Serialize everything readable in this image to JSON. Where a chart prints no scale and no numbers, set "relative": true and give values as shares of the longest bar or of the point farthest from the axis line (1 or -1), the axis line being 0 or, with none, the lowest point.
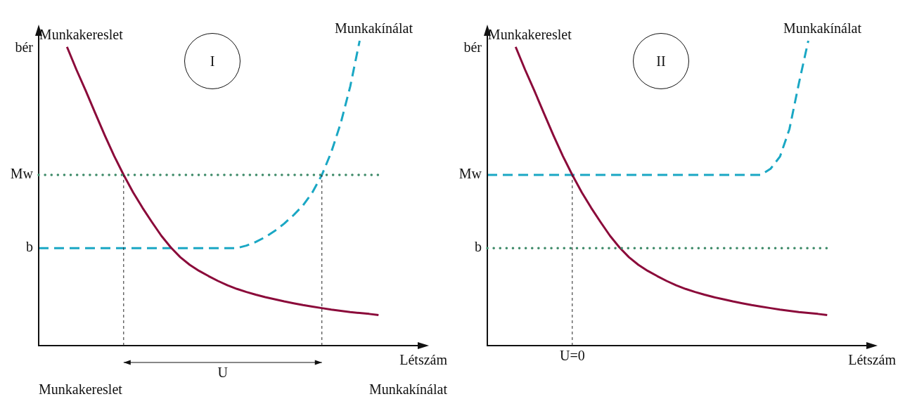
{
  "chart_data": [
    {
      "type": "line",
      "relative": true,
      "title": "I",
      "xlabel": "Létszám",
      "ylabel": "bér",
      "legend": false,
      "categories": [
        null,
        null,
        null,
        null,
        null,
        null,
        null,
        null,
        null,
        null,
        null,
        null,
        null,
        null,
        null,
        null,
        null,
        null,
        null,
        null,
        null,
        null,
        null,
        null,
        null,
        null,
        null,
        null,
        null,
        null,
        null,
        null,
        null,
        null,
        null,
        null,
        null,
        null,
        null,
        null,
        null
      ],
      "series": [
        {
          "name": "Munkakereslet",
          "color": "#8b0a3a",
          "line_style": "solid",
          "values": [
            null,
            null,
            null,
            0.98,
            0.905,
            0.835,
            0.762,
            0.69,
            0.622,
            0.56,
            0.503,
            0.452,
            0.405,
            0.36,
            0.322,
            0.29,
            0.265,
            0.245,
            0.228,
            0.212,
            0.198,
            0.186,
            0.176,
            0.167,
            0.159,
            0.152,
            0.145,
            0.139,
            0.133,
            0.128,
            0.123,
            0.118,
            0.114,
            0.11,
            0.107,
            0.104,
            0.1,
            null,
            null,
            null,
            null
          ]
        },
        {
          "name": "Munkakínálat",
          "color": "#1aa7c4",
          "line_style": "dashed",
          "values": [
            0.32,
            0.32,
            0.32,
            0.32,
            0.32,
            0.32,
            0.32,
            0.32,
            0.32,
            0.32,
            0.32,
            0.32,
            0.32,
            0.32,
            0.32,
            0.32,
            0.32,
            0.32,
            0.32,
            0.32,
            0.32,
            0.32,
            0.328,
            0.34,
            0.356,
            0.376,
            0.4,
            0.428,
            0.46,
            0.503,
            0.56,
            0.635,
            0.73,
            0.85,
            1.0,
            null,
            null,
            null,
            null,
            null,
            null
          ]
        }
      ],
      "ref_lines": [
        {
          "axis": "y",
          "value": 0.56,
          "color": "#3d8a68",
          "line_style": "dotted"
        }
      ],
      "annotations": [
        "Mw",
        "b",
        "U",
        "Munkakereslet",
        "Munkakínálat"
      ]
    },
    {
      "type": "line",
      "relative": true,
      "title": "II",
      "xlabel": "Létszám",
      "ylabel": "bér",
      "legend": false,
      "categories": [
        null,
        null,
        null,
        null,
        null,
        null,
        null,
        null,
        null,
        null,
        null,
        null,
        null,
        null,
        null,
        null,
        null,
        null,
        null,
        null,
        null,
        null,
        null,
        null,
        null,
        null,
        null,
        null,
        null,
        null,
        null,
        null,
        null,
        null,
        null,
        null,
        null,
        null,
        null,
        null,
        null
      ],
      "series": [
        {
          "name": "Munkakereslet",
          "color": "#8b0a3a",
          "line_style": "solid",
          "values": [
            null,
            null,
            null,
            0.98,
            0.905,
            0.835,
            0.762,
            0.69,
            0.622,
            0.56,
            0.503,
            0.452,
            0.405,
            0.36,
            0.322,
            0.29,
            0.265,
            0.245,
            0.228,
            0.212,
            0.198,
            0.186,
            0.176,
            0.167,
            0.159,
            0.152,
            0.145,
            0.139,
            0.133,
            0.128,
            0.123,
            0.118,
            0.114,
            0.11,
            0.107,
            0.104,
            0.1,
            null,
            null,
            null,
            null
          ]
        },
        {
          "name": "Munkakínálat",
          "color": "#1aa7c4",
          "line_style": "dashed",
          "values": [
            0.56,
            0.56,
            0.56,
            0.56,
            0.56,
            0.56,
            0.56,
            0.56,
            0.56,
            0.56,
            0.56,
            0.56,
            0.56,
            0.56,
            0.56,
            0.56,
            0.56,
            0.56,
            0.56,
            0.56,
            0.56,
            0.56,
            0.56,
            0.56,
            0.56,
            0.56,
            0.56,
            0.56,
            0.56,
            0.56,
            0.58,
            0.62,
            0.71,
            0.86,
            1.0,
            null,
            null,
            null,
            null,
            null,
            null
          ]
        }
      ],
      "ref_lines": [
        {
          "axis": "y",
          "value": 0.32,
          "color": "#3d8a68",
          "line_style": "dotted"
        }
      ],
      "annotations": [
        "Mw",
        "b",
        "U=0"
      ]
    }
  ]
}
